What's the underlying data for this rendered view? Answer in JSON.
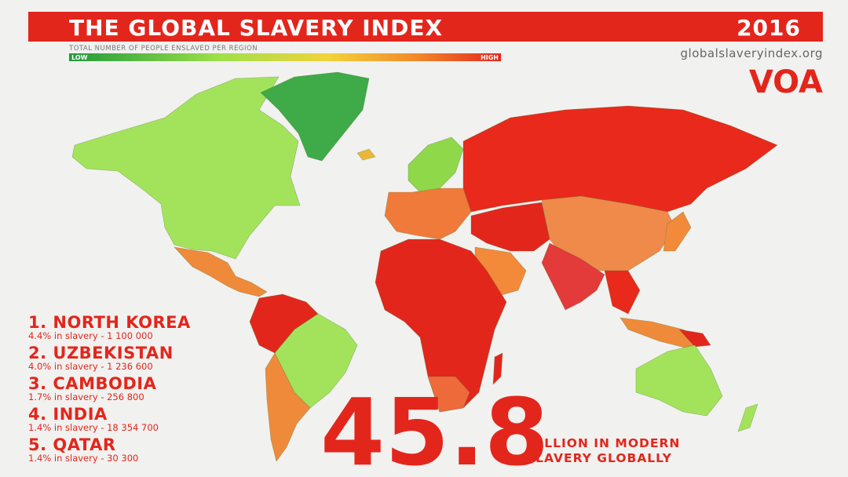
{
  "header": {
    "title": "THE GLOBAL SLAVERY INDEX",
    "year": "2016",
    "legend_caption": "TOTAL NUMBER OF PEOPLE ENSLAVED PER REGION",
    "legend_low": "LOW",
    "legend_high": "HIGH",
    "source": "globalslaveryindex.org",
    "logo": "VOA"
  },
  "ranking": [
    {
      "name": "1. NORTH KOREA",
      "detail": "4.4% in slavery - 1 100 000"
    },
    {
      "name": "2. UZBEKISTAN",
      "detail": "4.0% in slavery - 1 236 600"
    },
    {
      "name": "3. CAMBODIA",
      "detail": "1.7% in slavery - 256 800"
    },
    {
      "name": "4. INDIA",
      "detail": "1.4% in slavery - 18 354 700"
    },
    {
      "name": "5. QATAR",
      "detail": "1.4% in slavery - 30 300"
    }
  ],
  "total": {
    "number": "45.8",
    "caption_line1": "MILLION IN MODERN",
    "caption_line2": "SLAVERY GLOBALLY"
  }
}
